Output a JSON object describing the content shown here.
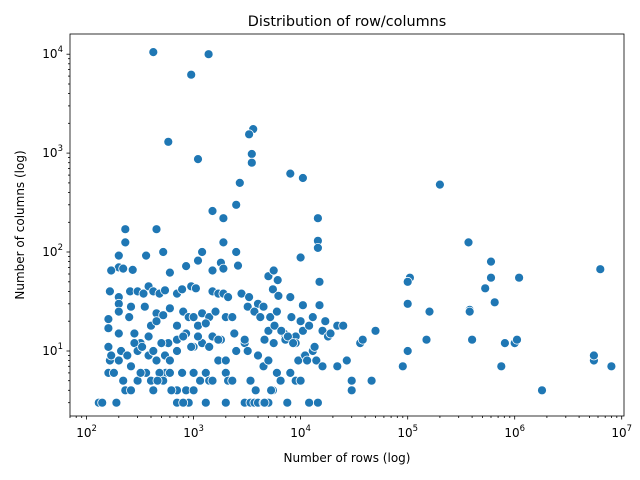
{
  "chart_data": {
    "type": "scatter",
    "title": "Distribution of row/columns",
    "xlabel": "Number of rows (log)",
    "ylabel": "Number of columns (log)",
    "xscale": "log",
    "yscale": "log",
    "xlim": [
      70,
      10500000
    ],
    "ylim": [
      2.2,
      16000
    ],
    "grid": false,
    "colors": {
      "marker_fill": "#1f77b4",
      "marker_edge": "#ffffff"
    },
    "x_ticks": [
      {
        "value": 100,
        "base": "10",
        "exp": "2"
      },
      {
        "value": 1000,
        "base": "10",
        "exp": "3"
      },
      {
        "value": 10000,
        "base": "10",
        "exp": "4"
      },
      {
        "value": 100000,
        "base": "10",
        "exp": "5"
      },
      {
        "value": 1000000,
        "base": "10",
        "exp": "6"
      },
      {
        "value": 10000000,
        "base": "10",
        "exp": "7"
      }
    ],
    "y_ticks": [
      {
        "value": 10,
        "base": "10",
        "exp": "1"
      },
      {
        "value": 100,
        "base": "10",
        "exp": "2"
      },
      {
        "value": 1000,
        "base": "10",
        "exp": "3"
      },
      {
        "value": 10000,
        "base": "10",
        "exp": "4"
      }
    ],
    "points": [
      [
        420,
        10500
      ],
      [
        1380,
        10000
      ],
      [
        950,
        6200
      ],
      [
        580,
        1300
      ],
      [
        1100,
        870
      ],
      [
        3600,
        1750
      ],
      [
        3300,
        1550
      ],
      [
        3500,
        980
      ],
      [
        3500,
        800
      ],
      [
        8000,
        620
      ],
      [
        10500,
        560
      ],
      [
        200000,
        480
      ],
      [
        2700,
        500
      ],
      [
        2500,
        300
      ],
      [
        1500,
        260
      ],
      [
        1900,
        220
      ],
      [
        14500,
        220
      ],
      [
        230,
        170
      ],
      [
        450,
        170
      ],
      [
        1900,
        125
      ],
      [
        230,
        125
      ],
      [
        370000,
        125
      ],
      [
        14500,
        130
      ],
      [
        14500,
        110
      ],
      [
        1200,
        100
      ],
      [
        2500,
        100
      ],
      [
        520,
        100
      ],
      [
        200,
        92
      ],
      [
        10000,
        88
      ],
      [
        360,
        92
      ],
      [
        1800,
        78
      ],
      [
        1100,
        82
      ],
      [
        600000,
        80
      ],
      [
        6300000,
        67
      ],
      [
        200,
        70
      ],
      [
        170,
        65
      ],
      [
        220,
        68
      ],
      [
        270,
        66
      ],
      [
        600,
        62
      ],
      [
        850,
        72
      ],
      [
        1500,
        65
      ],
      [
        1900,
        68
      ],
      [
        2600,
        73
      ],
      [
        5000,
        57
      ],
      [
        5600,
        65
      ],
      [
        6100,
        52
      ],
      [
        600000,
        55
      ],
      [
        1100000,
        55
      ],
      [
        105000,
        55
      ],
      [
        100000,
        50
      ],
      [
        15000,
        50
      ],
      [
        650000,
        31
      ],
      [
        530000,
        43
      ],
      [
        380000,
        26
      ],
      [
        380000,
        25
      ],
      [
        160000,
        25
      ],
      [
        100000,
        30
      ],
      [
        165,
        40
      ],
      [
        200,
        35
      ],
      [
        255,
        40
      ],
      [
        300,
        40
      ],
      [
        340,
        38
      ],
      [
        380,
        45
      ],
      [
        420,
        40
      ],
      [
        480,
        38
      ],
      [
        540,
        41
      ],
      [
        700,
        38
      ],
      [
        780,
        42
      ],
      [
        950,
        45
      ],
      [
        1050,
        43
      ],
      [
        1500,
        40
      ],
      [
        1700,
        38
      ],
      [
        1900,
        38
      ],
      [
        2100,
        35
      ],
      [
        2800,
        38
      ],
      [
        3300,
        35
      ],
      [
        4000,
        30
      ],
      [
        4500,
        28
      ],
      [
        5500,
        42
      ],
      [
        6200,
        36
      ],
      [
        8000,
        35
      ],
      [
        10500,
        29
      ],
      [
        15000,
        29
      ],
      [
        200,
        30
      ],
      [
        260,
        28
      ],
      [
        350,
        28
      ],
      [
        450,
        24
      ],
      [
        520,
        23
      ],
      [
        600,
        27
      ],
      [
        800,
        25
      ],
      [
        900,
        22
      ],
      [
        1000,
        22
      ],
      [
        1200,
        24
      ],
      [
        1400,
        22
      ],
      [
        1600,
        25
      ],
      [
        2000,
        22
      ],
      [
        2300,
        22
      ],
      [
        3200,
        28
      ],
      [
        3700,
        25
      ],
      [
        4200,
        22
      ],
      [
        5200,
        22
      ],
      [
        6000,
        25
      ],
      [
        8200,
        22
      ],
      [
        10000,
        20
      ],
      [
        13000,
        22
      ],
      [
        17000,
        20
      ],
      [
        22000,
        18
      ],
      [
        160,
        21
      ],
      [
        200,
        25
      ],
      [
        250,
        22
      ],
      [
        400,
        18
      ],
      [
        450,
        20
      ],
      [
        700,
        18
      ],
      [
        850,
        15
      ],
      [
        1100,
        18
      ],
      [
        1300,
        19
      ],
      [
        1500,
        14
      ],
      [
        1800,
        13
      ],
      [
        2400,
        15
      ],
      [
        3000,
        12
      ],
      [
        5000,
        16
      ],
      [
        5700,
        18
      ],
      [
        7000,
        15
      ],
      [
        9000,
        14
      ],
      [
        10500,
        16
      ],
      [
        12000,
        18
      ],
      [
        16000,
        16
      ],
      [
        18000,
        14
      ],
      [
        160,
        17
      ],
      [
        200,
        15
      ],
      [
        280,
        15
      ],
      [
        320,
        12
      ],
      [
        380,
        14
      ],
      [
        500,
        12
      ],
      [
        580,
        12
      ],
      [
        700,
        13
      ],
      [
        800,
        14
      ],
      [
        1000,
        11
      ],
      [
        1200,
        12
      ],
      [
        1400,
        11
      ],
      [
        1700,
        8
      ],
      [
        2000,
        8
      ],
      [
        2500,
        10
      ],
      [
        3200,
        10
      ],
      [
        4000,
        9
      ],
      [
        4600,
        13
      ],
      [
        5600,
        12
      ],
      [
        7200,
        13
      ],
      [
        9000,
        12
      ],
      [
        10800,
        9
      ],
      [
        13000,
        10
      ],
      [
        160,
        11
      ],
      [
        165,
        8
      ],
      [
        170,
        9
      ],
      [
        200,
        8
      ],
      [
        210,
        10
      ],
      [
        240,
        9
      ],
      [
        280,
        12
      ],
      [
        300,
        10
      ],
      [
        330,
        11
      ],
      [
        380,
        9
      ],
      [
        420,
        10
      ],
      [
        450,
        8
      ],
      [
        500,
        12
      ],
      [
        550,
        6
      ],
      [
        600,
        6
      ],
      [
        700,
        4
      ],
      [
        780,
        6
      ],
      [
        850,
        4
      ],
      [
        900,
        3
      ],
      [
        1000,
        6
      ],
      [
        1150,
        5
      ],
      [
        1300,
        6
      ],
      [
        1400,
        5
      ],
      [
        1500,
        5
      ],
      [
        2000,
        6
      ],
      [
        2100,
        5
      ],
      [
        3400,
        5
      ],
      [
        4500,
        7
      ],
      [
        5000,
        8
      ],
      [
        5500,
        4
      ],
      [
        6000,
        6
      ],
      [
        6500,
        5
      ],
      [
        8000,
        6
      ],
      [
        9000,
        5
      ],
      [
        9500,
        8
      ],
      [
        10000,
        5
      ],
      [
        11000,
        9
      ],
      [
        14000,
        8
      ],
      [
        22000,
        7
      ],
      [
        27000,
        8
      ],
      [
        30000,
        5
      ],
      [
        36000,
        12
      ],
      [
        38000,
        13
      ],
      [
        50000,
        16
      ],
      [
        46000,
        5
      ],
      [
        90000,
        7
      ],
      [
        100000,
        10
      ],
      [
        150000,
        13
      ],
      [
        400000,
        13
      ],
      [
        810000,
        12
      ],
      [
        1000000,
        12
      ],
      [
        1050000,
        13
      ],
      [
        750000,
        7
      ],
      [
        1800000,
        4
      ],
      [
        5500000,
        8
      ],
      [
        5500000,
        9
      ],
      [
        8000000,
        7
      ],
      [
        130,
        3
      ],
      [
        140,
        3
      ],
      [
        190,
        3
      ],
      [
        230,
        4
      ],
      [
        260,
        4
      ],
      [
        360,
        6
      ],
      [
        420,
        4
      ],
      [
        480,
        6
      ],
      [
        520,
        5
      ],
      [
        620,
        4
      ],
      [
        700,
        3
      ],
      [
        800,
        3
      ],
      [
        1000,
        4
      ],
      [
        1300,
        3
      ],
      [
        2000,
        3
      ],
      [
        3000,
        3
      ],
      [
        3400,
        3
      ],
      [
        3700,
        3
      ],
      [
        4000,
        3
      ],
      [
        4500,
        3
      ],
      [
        5000,
        3
      ],
      [
        7500,
        3
      ],
      [
        12000,
        3
      ],
      [
        14500,
        3
      ],
      [
        30000,
        4
      ],
      [
        160,
        6
      ],
      [
        180,
        6
      ],
      [
        220,
        5
      ],
      [
        260,
        7
      ],
      [
        300,
        5
      ],
      [
        320,
        6
      ],
      [
        400,
        5
      ],
      [
        460,
        5
      ],
      [
        540,
        9
      ],
      [
        600,
        8
      ],
      [
        700,
        10
      ],
      [
        950,
        11
      ],
      [
        1100,
        14
      ],
      [
        1700,
        13
      ],
      [
        2300,
        5
      ],
      [
        3000,
        13
      ],
      [
        3800,
        4
      ],
      [
        4600,
        3
      ],
      [
        5300,
        4
      ],
      [
        6600,
        16
      ],
      [
        7600,
        14
      ],
      [
        8500,
        12
      ],
      [
        11500,
        8
      ],
      [
        13500,
        11
      ],
      [
        16000,
        7
      ],
      [
        19000,
        15
      ],
      [
        25000,
        18
      ]
    ]
  }
}
